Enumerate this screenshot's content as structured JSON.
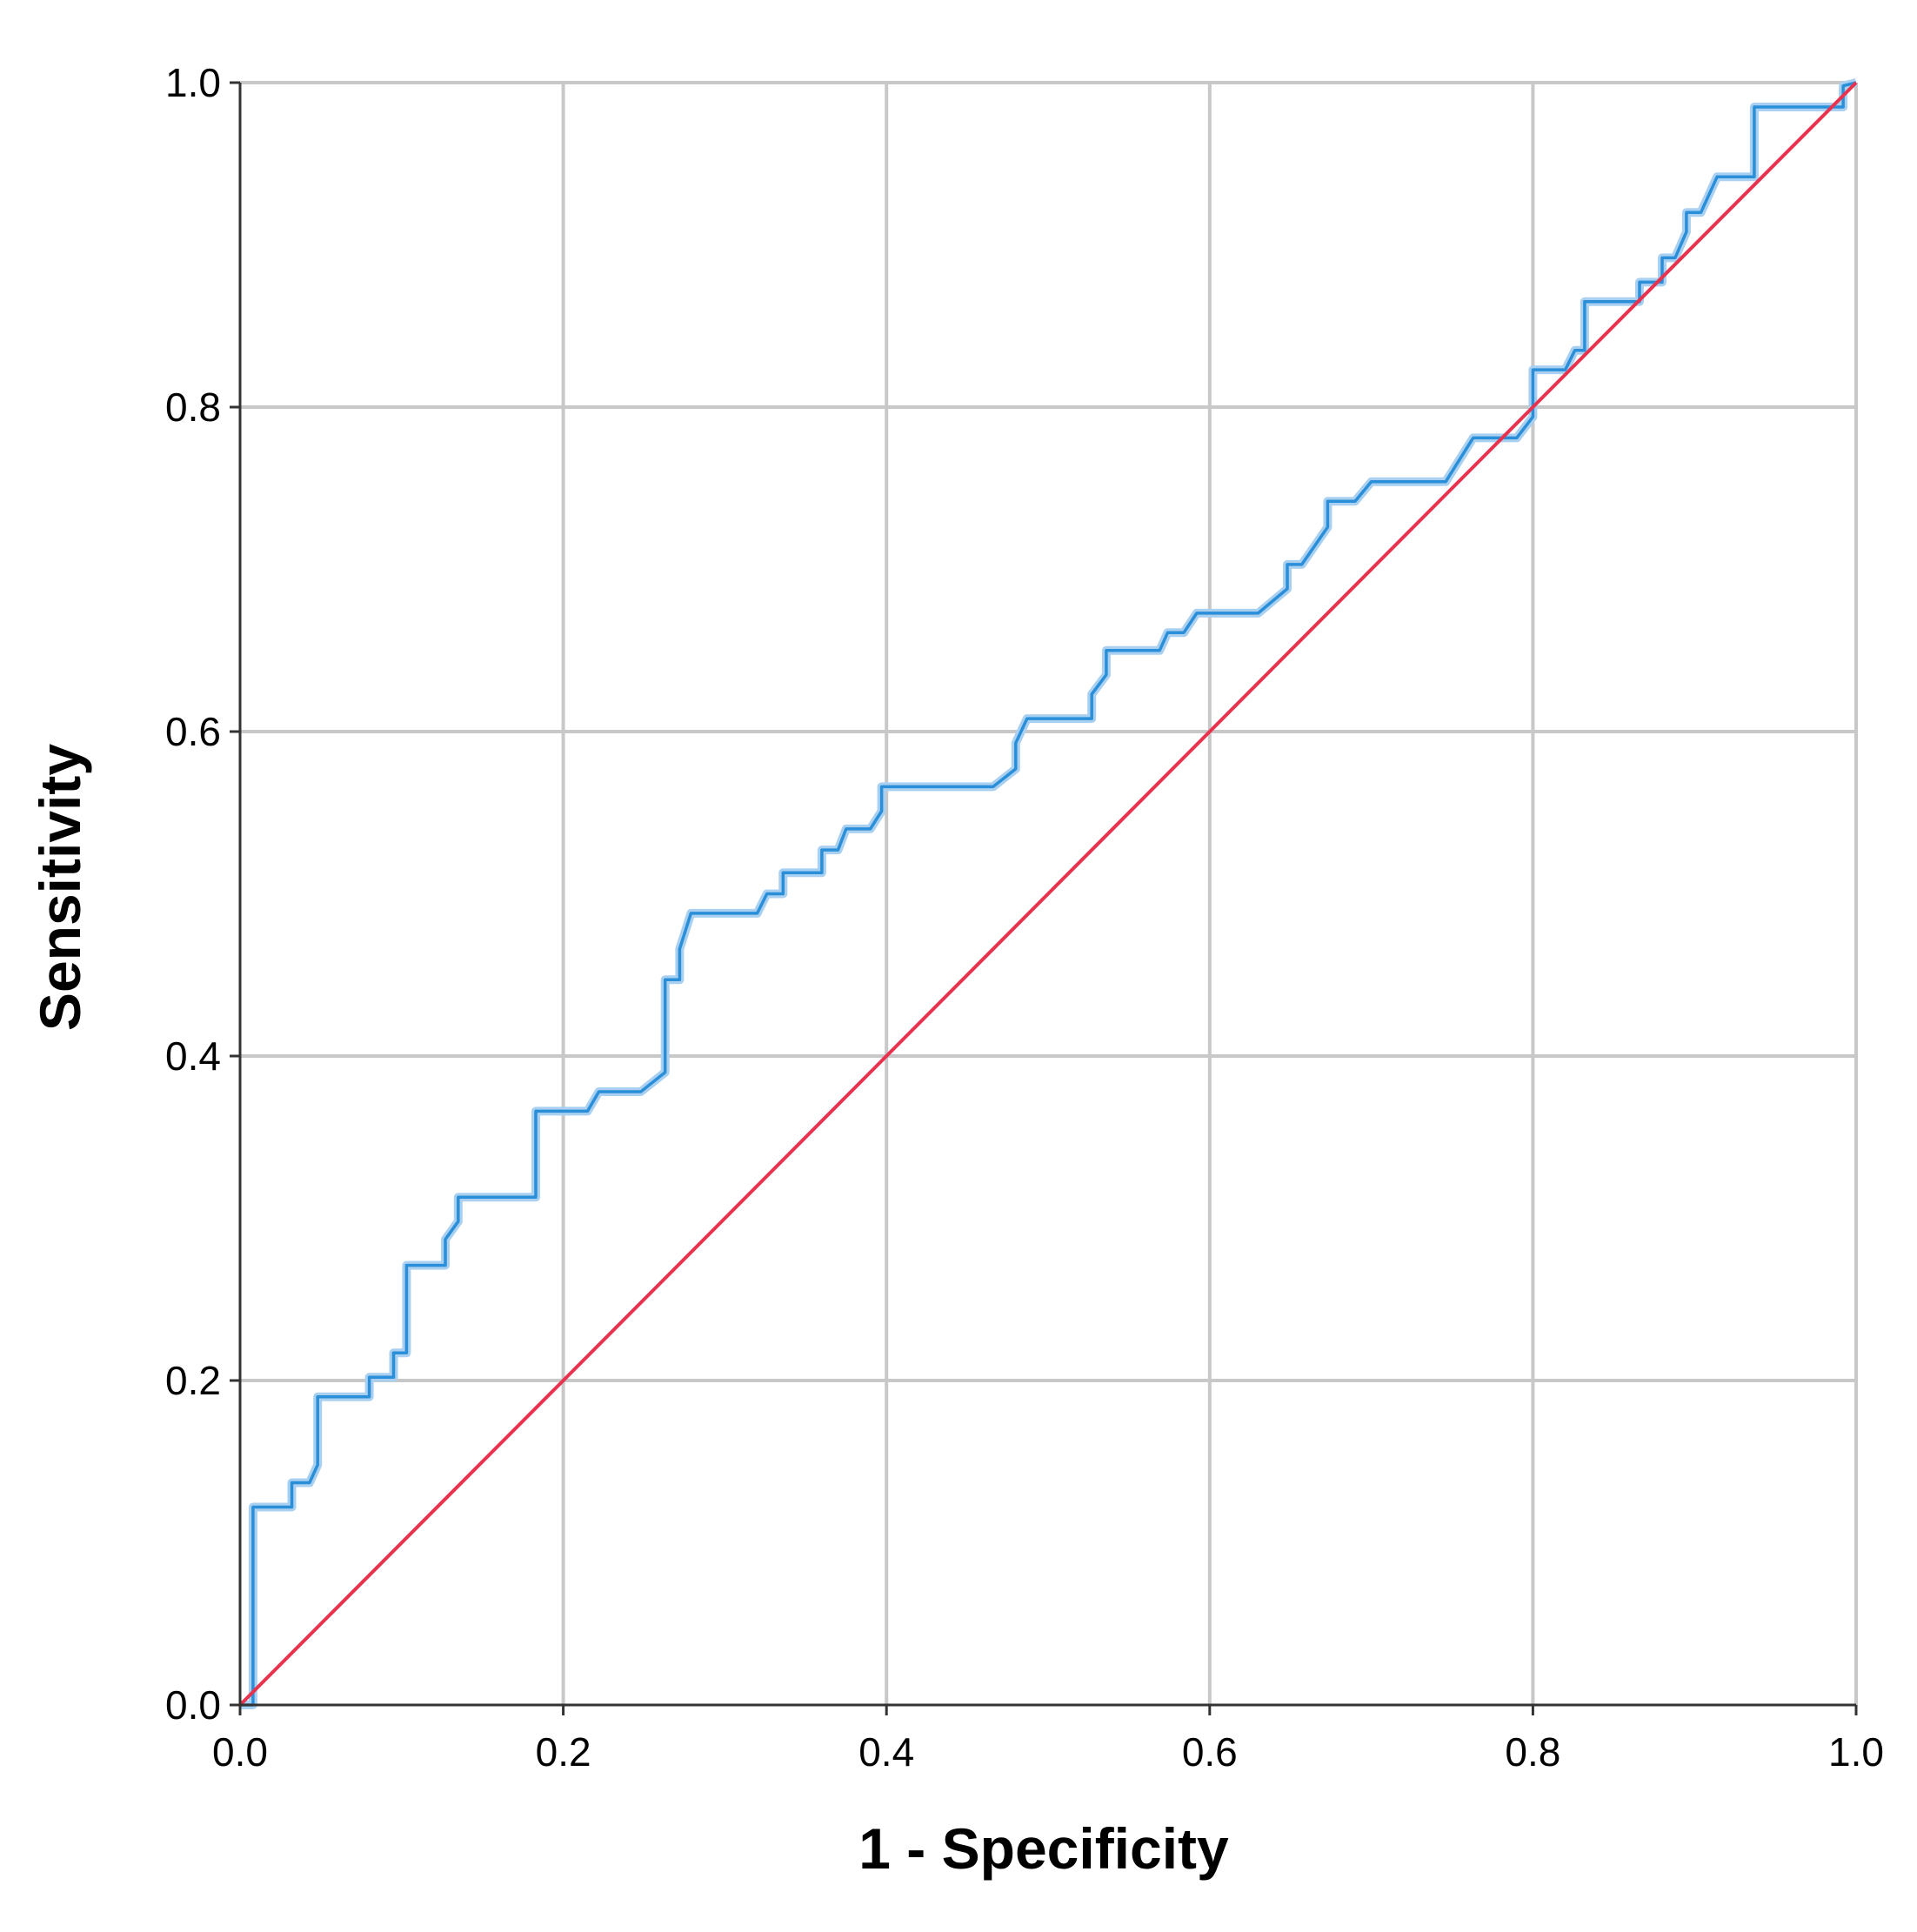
{
  "chart_data": {
    "type": "line",
    "title": "",
    "xlabel": "1 - Specificity",
    "ylabel": "Sensitivity",
    "xlim": [
      0.0,
      1.0
    ],
    "ylim": [
      0.0,
      1.0
    ],
    "grid": true,
    "x_ticks": [
      "0.0",
      "0.2",
      "0.4",
      "0.6",
      "0.8",
      "1.0"
    ],
    "y_ticks": [
      "0.0",
      "0.2",
      "0.4",
      "0.6",
      "0.8",
      "1.0"
    ],
    "colors": {
      "roc_curve": "#2a8fd8",
      "roc_curve_halo": "#a9d0f0",
      "reference_line": "#e8334f",
      "grid": "#c8c8c8",
      "axis": "#333333"
    },
    "series": [
      {
        "points": [
          [
            0.0,
            0.0
          ],
          [
            0.008,
            0.0
          ],
          [
            0.008,
            0.122
          ],
          [
            0.032,
            0.122
          ],
          [
            0.032,
            0.137
          ],
          [
            0.043,
            0.137
          ],
          [
            0.048,
            0.148
          ],
          [
            0.048,
            0.19
          ],
          [
            0.08,
            0.19
          ],
          [
            0.08,
            0.202
          ],
          [
            0.095,
            0.202
          ],
          [
            0.095,
            0.217
          ],
          [
            0.103,
            0.217
          ],
          [
            0.103,
            0.271
          ],
          [
            0.127,
            0.271
          ],
          [
            0.127,
            0.287
          ],
          [
            0.135,
            0.298
          ],
          [
            0.135,
            0.313
          ],
          [
            0.183,
            0.313
          ],
          [
            0.183,
            0.366
          ],
          [
            0.215,
            0.366
          ],
          [
            0.222,
            0.378
          ],
          [
            0.248,
            0.378
          ],
          [
            0.263,
            0.39
          ],
          [
            0.263,
            0.447
          ],
          [
            0.272,
            0.447
          ],
          [
            0.272,
            0.466
          ],
          [
            0.279,
            0.488
          ],
          [
            0.32,
            0.488
          ],
          [
            0.326,
            0.5
          ],
          [
            0.336,
            0.5
          ],
          [
            0.336,
            0.513
          ],
          [
            0.36,
            0.513
          ],
          [
            0.36,
            0.527
          ],
          [
            0.37,
            0.527
          ],
          [
            0.375,
            0.54
          ],
          [
            0.39,
            0.54
          ],
          [
            0.397,
            0.551
          ],
          [
            0.397,
            0.566
          ],
          [
            0.466,
            0.566
          ],
          [
            0.48,
            0.577
          ],
          [
            0.48,
            0.593
          ],
          [
            0.487,
            0.608
          ],
          [
            0.527,
            0.608
          ],
          [
            0.527,
            0.623
          ],
          [
            0.536,
            0.635
          ],
          [
            0.536,
            0.65
          ],
          [
            0.569,
            0.65
          ],
          [
            0.574,
            0.661
          ],
          [
            0.584,
            0.661
          ],
          [
            0.592,
            0.673
          ],
          [
            0.63,
            0.673
          ],
          [
            0.648,
            0.688
          ],
          [
            0.648,
            0.703
          ],
          [
            0.657,
            0.703
          ],
          [
            0.673,
            0.726
          ],
          [
            0.673,
            0.742
          ],
          [
            0.69,
            0.742
          ],
          [
            0.7,
            0.754
          ],
          [
            0.746,
            0.754
          ],
          [
            0.763,
            0.781
          ],
          [
            0.79,
            0.781
          ],
          [
            0.8,
            0.794
          ],
          [
            0.8,
            0.823
          ],
          [
            0.82,
            0.823
          ],
          [
            0.826,
            0.835
          ],
          [
            0.832,
            0.835
          ],
          [
            0.832,
            0.865
          ],
          [
            0.866,
            0.865
          ],
          [
            0.866,
            0.877
          ],
          [
            0.88,
            0.877
          ],
          [
            0.88,
            0.892
          ],
          [
            0.888,
            0.892
          ],
          [
            0.895,
            0.908
          ],
          [
            0.895,
            0.92
          ],
          [
            0.904,
            0.92
          ],
          [
            0.914,
            0.942
          ],
          [
            0.937,
            0.942
          ],
          [
            0.937,
            0.985
          ],
          [
            0.992,
            0.985
          ],
          [
            0.992,
            0.998
          ],
          [
            1.0,
            1.0
          ]
        ]
      },
      {
        "points": [
          [
            0.0,
            0.0
          ],
          [
            1.0,
            1.0
          ]
        ]
      }
    ]
  }
}
